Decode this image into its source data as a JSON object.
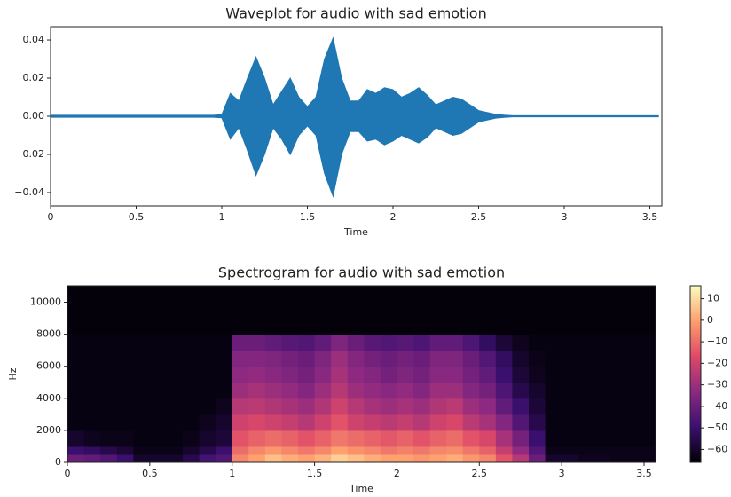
{
  "chart_data": [
    {
      "type": "area",
      "title": "Waveplot for audio with sad emotion",
      "x_label": "Time",
      "xlim": [
        0,
        3.57
      ],
      "xticks": [
        0,
        0.5,
        1,
        1.5,
        2,
        2.5,
        3,
        3.5
      ],
      "ylim": [
        -0.047,
        0.047
      ],
      "yticks": [
        {
          "value": -0.04,
          "label": "−0.04"
        },
        {
          "value": -0.02,
          "label": "−0.02"
        },
        {
          "value": 0,
          "label": "0.00"
        },
        {
          "value": 0.02,
          "label": "0.02"
        },
        {
          "value": 0.04,
          "label": "0.04"
        }
      ],
      "x": [
        0,
        0.05,
        0.1,
        0.15,
        0.2,
        0.25,
        0.3,
        0.35,
        0.4,
        0.45,
        0.5,
        0.55,
        0.6,
        0.65,
        0.7,
        0.75,
        0.8,
        0.85,
        0.9,
        0.95,
        1,
        1.05,
        1.1,
        1.15,
        1.2,
        1.25,
        1.3,
        1.35,
        1.4,
        1.45,
        1.5,
        1.55,
        1.6,
        1.65,
        1.7,
        1.75,
        1.8,
        1.85,
        1.9,
        1.95,
        2,
        2.05,
        2.1,
        2.15,
        2.2,
        2.25,
        2.3,
        2.35,
        2.4,
        2.45,
        2.5,
        2.55,
        2.6,
        2.65,
        2.7,
        2.75,
        2.8,
        2.85,
        2.9,
        2.95,
        3,
        3.05,
        3.1,
        3.15,
        3.2,
        3.25,
        3.3,
        3.35,
        3.4,
        3.45,
        3.5,
        3.55
      ],
      "series": [
        {
          "color": "#1f77b4",
          "values": [
            0.0005,
            0.0005,
            0.0005,
            0.0005,
            0.0005,
            0.0005,
            0.0005,
            0.0005,
            0.0005,
            0.0005,
            0.0005,
            0.0005,
            0.0005,
            0.0005,
            0.0005,
            0.0005,
            0.0005,
            0.0005,
            0.0005,
            0.0005,
            0.0008,
            0.012,
            0.008,
            0.02,
            0.031,
            0.02,
            0.006,
            0.013,
            0.02,
            0.01,
            0.005,
            0.01,
            0.03,
            0.041,
            0.02,
            0.008,
            0.008,
            0.014,
            0.012,
            0.015,
            0.014,
            0.01,
            0.012,
            0.015,
            0.011,
            0.006,
            0.008,
            0.01,
            0.009,
            0.006,
            0.003,
            0.002,
            0.001,
            0.0006,
            0.0003,
            0.0003,
            0.0003,
            0.0003,
            0.0003,
            0.0003,
            0.0003,
            0.0003,
            0.0003,
            0.0003,
            0.0003,
            0.0003,
            0.0003,
            0.0003,
            0.0003,
            0.0003,
            0.0003,
            0.0003
          ]
        },
        {
          "color": "#1f77b4",
          "values": [
            -0.0005,
            -0.0005,
            -0.0005,
            -0.0005,
            -0.0005,
            -0.0005,
            -0.0005,
            -0.0005,
            -0.0005,
            -0.0005,
            -0.0005,
            -0.0005,
            -0.0005,
            -0.0005,
            -0.0005,
            -0.0005,
            -0.0005,
            -0.0005,
            -0.0005,
            -0.0005,
            -0.0008,
            -0.012,
            -0.006,
            -0.018,
            -0.031,
            -0.02,
            -0.006,
            -0.012,
            -0.02,
            -0.01,
            -0.005,
            -0.01,
            -0.03,
            -0.042,
            -0.02,
            -0.008,
            -0.008,
            -0.013,
            -0.012,
            -0.015,
            -0.013,
            -0.01,
            -0.012,
            -0.014,
            -0.011,
            -0.006,
            -0.008,
            -0.01,
            -0.009,
            -0.006,
            -0.003,
            -0.002,
            -0.001,
            -0.0006,
            -0.0003,
            -0.0003,
            -0.0003,
            -0.0003,
            -0.0003,
            -0.0003,
            -0.0003,
            -0.0003,
            -0.0003,
            -0.0003,
            -0.0003,
            -0.0003,
            -0.0003,
            -0.0003,
            -0.0003,
            -0.0003,
            -0.0003,
            -0.0003
          ]
        }
      ]
    },
    {
      "type": "heatmap",
      "title": "Spectrogram for audio with sad emotion",
      "x_label": "Time",
      "y_label": "Hz",
      "xlim": [
        0,
        3.57
      ],
      "xticks": [
        0,
        0.5,
        1,
        1.5,
        2,
        2.5,
        3,
        3.5
      ],
      "ylim": [
        0,
        11025
      ],
      "yticks": [
        0,
        2000,
        4000,
        6000,
        8000,
        10000
      ],
      "x_edges": [
        0,
        0.1,
        0.2,
        0.3,
        0.4,
        0.5,
        0.6,
        0.7,
        0.8,
        0.9,
        1,
        1.1,
        1.2,
        1.3,
        1.4,
        1.5,
        1.6,
        1.7,
        1.8,
        1.9,
        2,
        2.1,
        2.2,
        2.3,
        2.4,
        2.5,
        2.6,
        2.7,
        2.8,
        2.9,
        3,
        3.1,
        3.2,
        3.3,
        3.4,
        3.5,
        3.57
      ],
      "y_edges": [
        0,
        500,
        1000,
        2000,
        3000,
        4000,
        5000,
        6000,
        7000,
        8000,
        11025
      ],
      "z": [
        [
          -40,
          -42,
          -45,
          -50,
          -60,
          -60,
          -60,
          -55,
          -48,
          -45,
          -5,
          0,
          5,
          2,
          0,
          3,
          8,
          5,
          2,
          0,
          0,
          -2,
          0,
          2,
          -2,
          -5,
          -15,
          -25,
          -40,
          -60,
          -60,
          -62,
          -62,
          -63,
          -63,
          -63
        ],
        [
          -50,
          -52,
          -55,
          -58,
          -63,
          -63,
          -63,
          -60,
          -55,
          -50,
          -10,
          -5,
          -2,
          -5,
          -8,
          -5,
          0,
          -3,
          -5,
          -8,
          -6,
          -8,
          -5,
          -4,
          -8,
          -12,
          -22,
          -32,
          -45,
          -63,
          -63,
          -63,
          -63,
          -63,
          -63,
          -63
        ],
        [
          -60,
          -62,
          -63,
          -63,
          -64,
          -64,
          -64,
          -63,
          -60,
          -58,
          -15,
          -12,
          -10,
          -12,
          -15,
          -12,
          -8,
          -10,
          -12,
          -14,
          -12,
          -15,
          -12,
          -10,
          -15,
          -18,
          -28,
          -38,
          -50,
          -64,
          -64,
          -64,
          -64,
          -64,
          -64,
          -64
        ],
        [
          -64,
          -64,
          -64,
          -64,
          -64,
          -64,
          -64,
          -64,
          -62,
          -60,
          -20,
          -18,
          -20,
          -22,
          -25,
          -20,
          -15,
          -20,
          -22,
          -24,
          -22,
          -25,
          -20,
          -18,
          -24,
          -28,
          -35,
          -45,
          -55,
          -64,
          -64,
          -64,
          -64,
          -64,
          -64,
          -64
        ],
        [
          -64,
          -64,
          -64,
          -64,
          -64,
          -64,
          -64,
          -64,
          -64,
          -62,
          -25,
          -24,
          -26,
          -28,
          -30,
          -26,
          -20,
          -25,
          -28,
          -30,
          -28,
          -30,
          -26,
          -24,
          -30,
          -33,
          -42,
          -50,
          -58,
          -64,
          -64,
          -64,
          -64,
          -64,
          -64,
          -64
        ],
        [
          -64,
          -64,
          -64,
          -64,
          -64,
          -64,
          -64,
          -64,
          -64,
          -64,
          -30,
          -28,
          -30,
          -32,
          -35,
          -30,
          -25,
          -30,
          -32,
          -34,
          -32,
          -35,
          -30,
          -30,
          -35,
          -38,
          -46,
          -55,
          -60,
          -64,
          -64,
          -64,
          -64,
          -64,
          -64,
          -64
        ],
        [
          -64,
          -64,
          -64,
          -64,
          -64,
          -64,
          -64,
          -64,
          -64,
          -64,
          -33,
          -32,
          -34,
          -36,
          -38,
          -34,
          -28,
          -33,
          -35,
          -38,
          -36,
          -38,
          -34,
          -34,
          -38,
          -42,
          -50,
          -58,
          -62,
          -64,
          -64,
          -64,
          -64,
          -64,
          -64,
          -64
        ],
        [
          -64,
          -64,
          -64,
          -64,
          -64,
          -64,
          -64,
          -64,
          -64,
          -64,
          -35,
          -35,
          -36,
          -38,
          -40,
          -36,
          -30,
          -35,
          -38,
          -40,
          -38,
          -40,
          -36,
          -36,
          -40,
          -45,
          -52,
          -60,
          -63,
          -64,
          -64,
          -64,
          -64,
          -64,
          -64,
          -64
        ],
        [
          -64,
          -64,
          -64,
          -64,
          -64,
          -64,
          -64,
          -64,
          -64,
          -64,
          -40,
          -40,
          -42,
          -44,
          -45,
          -42,
          -36,
          -40,
          -44,
          -45,
          -44,
          -46,
          -42,
          -42,
          -46,
          -52,
          -58,
          -62,
          -64,
          -64,
          -64,
          -64,
          -64,
          -64,
          -64,
          -64
        ],
        [
          -65,
          -65,
          -65,
          -65,
          -65,
          -65,
          -65,
          -65,
          -65,
          -65,
          -65,
          -65,
          -65,
          -65,
          -65,
          -65,
          -65,
          -65,
          -65,
          -65,
          -65,
          -65,
          -65,
          -65,
          -65,
          -65,
          -65,
          -65,
          -65,
          -65,
          -65,
          -65,
          -65,
          -65,
          -65,
          -65
        ]
      ],
      "clim": [
        -66,
        16
      ],
      "colormap": [
        "#000004",
        "#3b0f70",
        "#8c2981",
        "#de4968",
        "#fe9f6d",
        "#fcfdbf"
      ],
      "cticks": [
        10,
        0,
        {
          "value": -10,
          "label": "−10"
        },
        {
          "value": -20,
          "label": "−20"
        },
        {
          "value": -30,
          "label": "−30"
        },
        {
          "value": -40,
          "label": "−40"
        },
        {
          "value": -50,
          "label": "−50"
        },
        {
          "value": -60,
          "label": "−60"
        }
      ]
    }
  ]
}
